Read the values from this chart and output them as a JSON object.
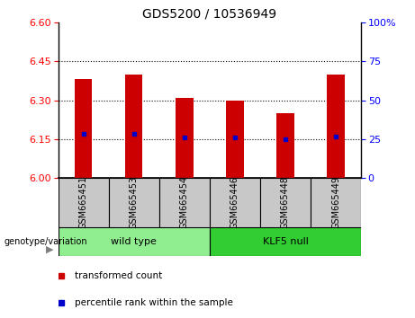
{
  "title": "GDS5200 / 10536949",
  "samples": [
    "GSM665451",
    "GSM665453",
    "GSM665454",
    "GSM665446",
    "GSM665448",
    "GSM665449"
  ],
  "bar_values": [
    6.38,
    6.4,
    6.31,
    6.3,
    6.25,
    6.4
  ],
  "percentile_values": [
    6.17,
    6.17,
    6.155,
    6.155,
    6.15,
    6.16
  ],
  "ylim": [
    6.0,
    6.6
  ],
  "yticks_left": [
    6.0,
    6.15,
    6.3,
    6.45,
    6.6
  ],
  "yticks_right": [
    0,
    25,
    50,
    75,
    100
  ],
  "bar_color": "#cc0000",
  "marker_color": "#0000cc",
  "bar_width": 0.35,
  "grid_yticks": [
    6.15,
    6.3,
    6.45
  ],
  "wild_type_count": 3,
  "klf5_null_count": 3,
  "wild_type_label": "wild type",
  "klf5_null_label": "KLF5 null",
  "genotype_label": "genotype/variation",
  "legend_bar_label": "transformed count",
  "legend_marker_label": "percentile rank within the sample",
  "sample_label_bg": "#c8c8c8",
  "wt_bg": "#90EE90",
  "kl_bg": "#32CD32",
  "base_value": 6.0,
  "title_fontsize": 10,
  "tick_fontsize": 8,
  "sample_fontsize": 7,
  "label_fontsize": 8,
  "legend_fontsize": 7.5
}
